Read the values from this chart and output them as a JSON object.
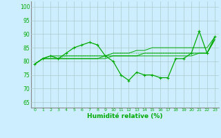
{
  "x": [
    0,
    1,
    2,
    3,
    4,
    5,
    6,
    7,
    8,
    9,
    10,
    11,
    12,
    13,
    14,
    15,
    16,
    17,
    18,
    19,
    20,
    21,
    22,
    23
  ],
  "line_jagged": [
    79,
    81,
    82,
    81,
    83,
    85,
    86,
    87,
    86,
    82,
    80,
    75,
    73,
    76,
    75,
    75,
    74,
    74,
    81,
    81,
    83,
    91,
    83,
    89
  ],
  "line_flat1": [
    79,
    81,
    81,
    81,
    81,
    81,
    81,
    81,
    81,
    81,
    82,
    82,
    82,
    82,
    83,
    83,
    83,
    83,
    83,
    83,
    83,
    83,
    83,
    88
  ],
  "line_flat2": [
    79,
    81,
    82,
    82,
    82,
    82,
    82,
    82,
    82,
    82,
    82,
    82,
    82,
    82,
    82,
    82,
    82,
    82,
    82,
    82,
    82,
    83,
    83,
    88
  ],
  "line_rise": [
    79,
    81,
    81,
    81,
    81,
    81,
    81,
    81,
    81,
    82,
    83,
    83,
    83,
    84,
    84,
    85,
    85,
    85,
    85,
    85,
    85,
    85,
    85,
    89
  ],
  "line_dotted": [
    79,
    81,
    82,
    81,
    82,
    82,
    82,
    82,
    82,
    82,
    83,
    83,
    83,
    83,
    83,
    83,
    83,
    83,
    83,
    83,
    83,
    83,
    83,
    88
  ],
  "background_color": "#cceeff",
  "grid_color": "#aacccc",
  "line_color": "#00aa00",
  "ylabel_ticks": [
    65,
    70,
    75,
    80,
    85,
    90,
    95,
    100
  ],
  "ylim": [
    63,
    102
  ],
  "xlim": [
    -0.5,
    23.5
  ],
  "xlabel": "Humidité relative (%)",
  "xlabel_color": "#00aa00",
  "tick_color": "#00aa00",
  "marker": "+"
}
